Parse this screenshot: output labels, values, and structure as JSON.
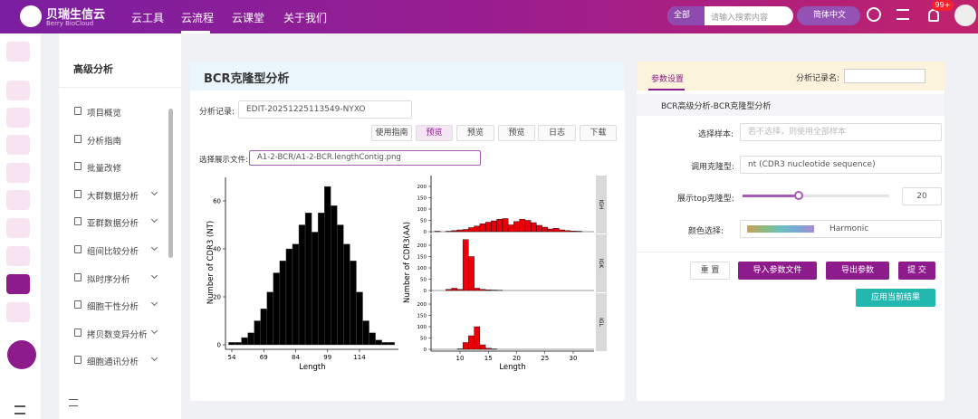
{
  "header": {
    "brand": "贝瑞生信云",
    "brand_en": "Berry BioCloud",
    "nav": [
      "云工具",
      "云流程",
      "云课堂",
      "关于我们"
    ],
    "search_scope": "全部",
    "search_placeholder": "请输入搜索内容",
    "language": "简体中文",
    "badge": "99+"
  },
  "sidebar": {
    "title": "高级分析",
    "items": [
      "项目概览",
      "分析指南",
      "批量改修",
      "大群数据分析",
      "亚群数据分析",
      "组间比较分析",
      "拟时序分析",
      "细胞干性分析",
      "拷贝数变异分析",
      "细胞通讯分析"
    ]
  },
  "main": {
    "title": "BCR克隆型分析",
    "record_label": "分析记录:",
    "record_value": "EDIT-20251225113549-NYXO",
    "buttons": [
      "使用指南",
      "预览",
      "预览",
      "预览",
      "日志",
      "下载"
    ],
    "file_label": "选择展示文件:",
    "file_value": "A1-2-BCR/A1-2-BCR.lengthContig.png"
  },
  "charts": [
    {
      "type": "histogram",
      "ylabel": "Number of CDR3 (NT)",
      "xlabel": "Length",
      "bins": [
        52.5,
        55.5,
        58.5,
        61.5,
        64.5,
        67.5,
        70.5,
        73.5,
        76.5,
        79.5,
        82.5,
        85.5,
        88.5,
        91.5,
        94.5,
        97.5,
        100.5,
        103.5,
        106.5,
        109.5,
        112.5,
        115.5,
        118.5,
        121.5,
        124.5,
        127.5,
        130.5
      ],
      "values": [
        1,
        1,
        3,
        5,
        10,
        15,
        22,
        30,
        35,
        40,
        42,
        50,
        55,
        47,
        55,
        66,
        58,
        50,
        42,
        35,
        22,
        10,
        5,
        2,
        1,
        1
      ],
      "color": "#000000",
      "xlim": [
        50,
        132
      ],
      "ylim": [
        0,
        70
      ],
      "xticks": [
        54,
        69,
        84,
        99,
        114
      ],
      "yticks": [
        0,
        20,
        40,
        60
      ]
    },
    {
      "type": "bar",
      "ylabel": "Number of CDR3(AA)",
      "xlabel": "Length",
      "x": [
        6,
        7,
        8,
        9,
        10,
        11,
        12,
        13,
        14,
        15,
        16,
        17,
        18,
        19,
        20,
        21,
        22,
        23,
        24,
        25,
        26,
        27,
        28,
        29,
        30,
        31
      ],
      "series": [
        {
          "name": "IGH",
          "values": [
            2,
            0,
            2,
            5,
            8,
            10,
            18,
            25,
            35,
            42,
            48,
            55,
            58,
            30,
            45,
            55,
            50,
            40,
            28,
            20,
            12,
            15,
            8,
            5,
            3,
            2
          ]
        },
        {
          "name": "IGK",
          "values": [
            0,
            0,
            5,
            10,
            5,
            225,
            150,
            10,
            5,
            3,
            2,
            1,
            0,
            0,
            0,
            0,
            0,
            0,
            0,
            0,
            0,
            0,
            0,
            0,
            0,
            0
          ]
        },
        {
          "name": "IGL",
          "values": [
            0,
            0,
            0,
            0,
            2,
            30,
            60,
            100,
            20,
            5,
            2,
            0,
            0,
            0,
            0,
            0,
            0,
            0,
            0,
            0,
            0,
            0,
            0,
            0,
            0,
            0
          ]
        }
      ],
      "color": "#e8000b",
      "xlim": [
        5,
        33
      ],
      "ylim": [
        0,
        230
      ],
      "xticks": [
        10,
        15,
        20,
        25,
        30
      ],
      "yticks": [
        0,
        50,
        100,
        150,
        200
      ]
    }
  ],
  "params": {
    "tab": "参数设置",
    "record_name_label": "分析记录名:",
    "section": "BCR高级分析-BCR克隆型分析",
    "fields": [
      {
        "label": "选择样本:",
        "placeholder": "若不选择，则使用全部样本"
      },
      {
        "label": "调用克隆型:",
        "value": "nt (CDR3 nucleotide sequence)"
      },
      {
        "label": "展示top克隆型:",
        "value": 20
      },
      {
        "label": "颜色选择:",
        "value": "Harmonic"
      }
    ],
    "buttons": [
      "重 置",
      "导入参数文件",
      "导出参数",
      "提 交",
      "应用当前结果"
    ]
  }
}
